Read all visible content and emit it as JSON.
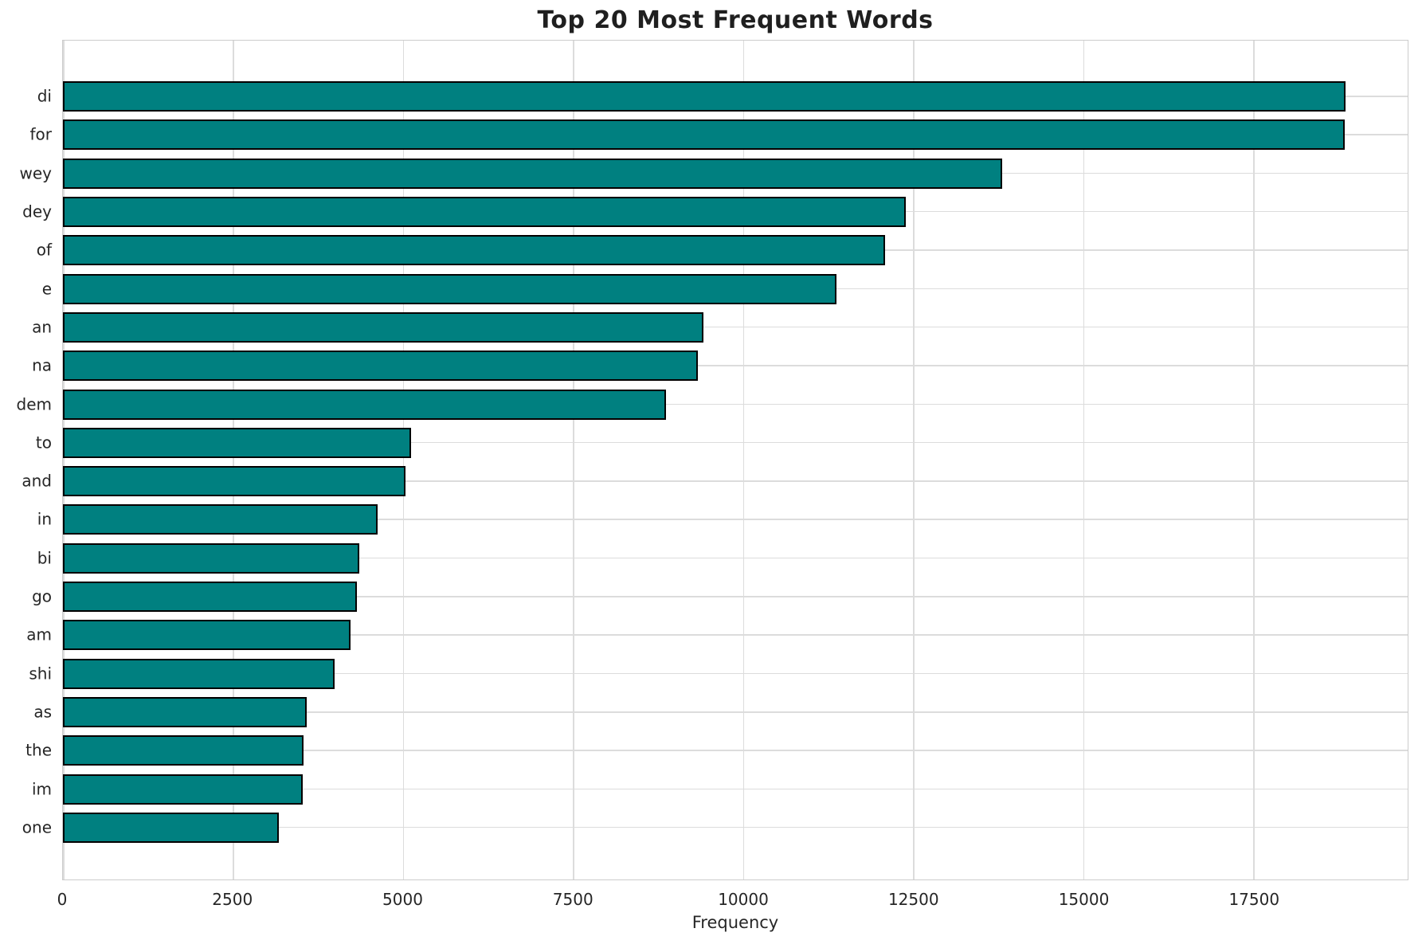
{
  "chart_data": {
    "type": "bar",
    "orientation": "horizontal",
    "title": "Top 20 Most Frequent Words",
    "xlabel": "Frequency",
    "ylabel": "",
    "categories": [
      "di",
      "for",
      "wey",
      "dey",
      "of",
      "e",
      "an",
      "na",
      "dem",
      "to",
      "and",
      "in",
      "bi",
      "go",
      "am",
      "shi",
      "as",
      "the",
      "im",
      "one"
    ],
    "values": [
      18850,
      18840,
      13810,
      12390,
      12090,
      11370,
      9410,
      9330,
      8870,
      5120,
      5030,
      4620,
      4360,
      4320,
      4230,
      3990,
      3580,
      3540,
      3520,
      3170
    ],
    "xticks": [
      0,
      2500,
      5000,
      7500,
      10000,
      12500,
      15000,
      17500
    ],
    "xlim": [
      0,
      19766
    ],
    "grid": true,
    "legend": "none",
    "colors": {
      "bar_fill": "#008080",
      "bar_edge": "#000000",
      "grid": "#dcdcdc",
      "spine": "#cccccc",
      "text": "#262626",
      "title": "#1f1f1f",
      "background": "#ffffff"
    }
  }
}
